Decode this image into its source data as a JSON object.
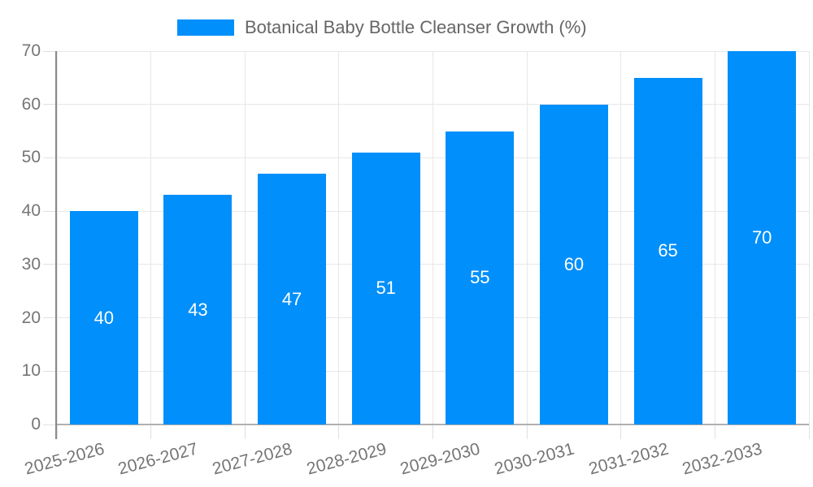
{
  "chart_data": {
    "type": "bar",
    "title": "Botanical Baby Bottle Cleanser Growth (%)",
    "legend": {
      "label": "Botanical Baby Bottle Cleanser Growth (%)",
      "position": "top-center",
      "swatch_color": "#008FFB"
    },
    "categories": [
      "2025-2026",
      "2026-2027",
      "2027-2028",
      "2028-2029",
      "2029-2030",
      "2030-2031",
      "2031-2032",
      "2032-2033"
    ],
    "series": [
      {
        "name": "Botanical Baby Bottle Cleanser Growth (%)",
        "color": "#008FFB",
        "values": [
          40,
          43,
          47,
          51,
          55,
          60,
          65,
          70
        ]
      }
    ],
    "xlabel": "",
    "ylabel": "",
    "ylim": [
      0,
      70
    ],
    "yticks": [
      0,
      10,
      20,
      30,
      40,
      50,
      60,
      70
    ],
    "grid": true,
    "x_label_rotation_deg": -15,
    "data_labels": {
      "visible": true,
      "position": "center",
      "color": "#ffffff"
    },
    "colors": {
      "bar": "#008FFB",
      "axis_text": "#757575",
      "legend_text": "#666666",
      "gridline": "#e7e7e7",
      "tick": "#e0e0e0",
      "y_axis_line": "#8a8a8a",
      "x_axis_line": "#b0b0b0",
      "background": "#ffffff",
      "data_label_text": "#ffffff"
    }
  }
}
